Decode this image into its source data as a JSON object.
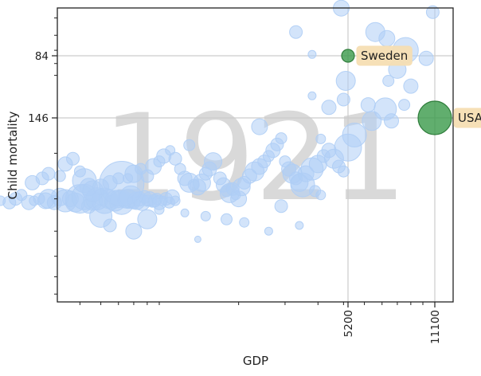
{
  "chart_data": {
    "type": "scatter",
    "xlabel": "GDP",
    "ylabel": "Child mortality",
    "year": "1921",
    "x_scale": "log",
    "y_scale": "log (inverted)",
    "xlim": [
      200,
      14000
    ],
    "ylim": [
      1000,
      30
    ],
    "grid": "reference lines only",
    "x_ticks": [
      {
        "label": "5200",
        "value": 5200
      },
      {
        "label": "11100",
        "value": 11100
      }
    ],
    "y_ticks": [
      {
        "label": "84",
        "value": 84
      },
      {
        "label": "146",
        "value": 146
      }
    ],
    "highlight": [
      {
        "label": "Sweden",
        "gdp": 5200,
        "child_mortality": 84,
        "size": 8,
        "color": "#3a9a4a"
      },
      {
        "label": "USA",
        "gdp": 11100,
        "child_mortality": 146,
        "size": 21,
        "color": "#3a9a4a"
      }
    ],
    "background_color": "#aecdf5",
    "points": [
      [
        228,
        310,
        7
      ],
      [
        250,
        305,
        6
      ],
      [
        270,
        310,
        8
      ],
      [
        285,
        300,
        8
      ],
      [
        300,
        290,
        7
      ],
      [
        320,
        310,
        9
      ],
      [
        335,
        305,
        6
      ],
      [
        350,
        300,
        7
      ],
      [
        370,
        305,
        10
      ],
      [
        380,
        300,
        12
      ],
      [
        400,
        310,
        9
      ],
      [
        420,
        295,
        11
      ],
      [
        440,
        305,
        14
      ],
      [
        460,
        300,
        10
      ],
      [
        480,
        310,
        12
      ],
      [
        500,
        300,
        18
      ],
      [
        520,
        295,
        16
      ],
      [
        540,
        320,
        9
      ],
      [
        560,
        305,
        12
      ],
      [
        580,
        300,
        14
      ],
      [
        600,
        295,
        10
      ],
      [
        620,
        305,
        16
      ],
      [
        640,
        300,
        12
      ],
      [
        660,
        310,
        9
      ],
      [
        680,
        305,
        13
      ],
      [
        700,
        300,
        11
      ],
      [
        720,
        310,
        15
      ],
      [
        740,
        305,
        9
      ],
      [
        760,
        300,
        12
      ],
      [
        780,
        295,
        14
      ],
      [
        800,
        310,
        8
      ],
      [
        820,
        305,
        11
      ],
      [
        840,
        300,
        9
      ],
      [
        860,
        310,
        10
      ],
      [
        880,
        295,
        8
      ],
      [
        900,
        305,
        7
      ],
      [
        920,
        300,
        9
      ],
      [
        940,
        310,
        6
      ],
      [
        960,
        305,
        8
      ],
      [
        980,
        300,
        7
      ],
      [
        1000,
        310,
        9
      ],
      [
        1030,
        305,
        6
      ],
      [
        1060,
        300,
        8
      ],
      [
        1090,
        310,
        7
      ],
      [
        1120,
        295,
        9
      ],
      [
        1150,
        305,
        6
      ],
      [
        330,
        260,
        9
      ],
      [
        360,
        250,
        8
      ],
      [
        380,
        240,
        8
      ],
      [
        420,
        245,
        7
      ],
      [
        440,
        220,
        9
      ],
      [
        470,
        210,
        8
      ],
      [
        500,
        235,
        7
      ],
      [
        520,
        255,
        15
      ],
      [
        540,
        270,
        11
      ],
      [
        560,
        280,
        13
      ],
      [
        600,
        270,
        10
      ],
      [
        650,
        260,
        9
      ],
      [
        700,
        250,
        7
      ],
      [
        720,
        262,
        28
      ],
      [
        760,
        250,
        6
      ],
      [
        800,
        240,
        11
      ],
      [
        850,
        230,
        7
      ],
      [
        900,
        245,
        8
      ],
      [
        950,
        225,
        10
      ],
      [
        1000,
        215,
        7
      ],
      [
        1040,
        205,
        9
      ],
      [
        1100,
        195,
        6
      ],
      [
        1150,
        210,
        8
      ],
      [
        1200,
        230,
        7
      ],
      [
        1250,
        250,
        9
      ],
      [
        1300,
        260,
        12
      ],
      [
        1350,
        265,
        7
      ],
      [
        1400,
        270,
        10
      ],
      [
        1450,
        260,
        11
      ],
      [
        1500,
        240,
        8
      ],
      [
        1550,
        230,
        9
      ],
      [
        1600,
        215,
        11
      ],
      [
        1700,
        250,
        8
      ],
      [
        1750,
        265,
        9
      ],
      [
        1800,
        280,
        7
      ],
      [
        1850,
        285,
        12
      ],
      [
        1900,
        275,
        8
      ],
      [
        1950,
        290,
        6
      ],
      [
        2000,
        300,
        10
      ],
      [
        2050,
        270,
        11
      ],
      [
        2100,
        260,
        8
      ],
      [
        2200,
        245,
        9
      ],
      [
        2300,
        235,
        12
      ],
      [
        2400,
        225,
        10
      ],
      [
        2500,
        215,
        8
      ],
      [
        2600,
        205,
        7
      ],
      [
        2700,
        195,
        9
      ],
      [
        2800,
        185,
        8
      ],
      [
        2900,
        175,
        7
      ],
      [
        3000,
        215,
        7
      ],
      [
        3100,
        230,
        9
      ],
      [
        3200,
        240,
        12
      ],
      [
        3300,
        250,
        8
      ],
      [
        3400,
        260,
        11
      ],
      [
        3500,
        265,
        15
      ],
      [
        3600,
        240,
        10
      ],
      [
        3800,
        230,
        14
      ],
      [
        4000,
        220,
        11
      ],
      [
        4200,
        205,
        8
      ],
      [
        4400,
        195,
        9
      ],
      [
        4600,
        210,
        12
      ],
      [
        4800,
        225,
        8
      ],
      [
        5000,
        235,
        7
      ],
      [
        3900,
        280,
        7
      ],
      [
        4100,
        290,
        6
      ],
      [
        2900,
        320,
        8
      ],
      [
        1400,
        430,
        4
      ],
      [
        2600,
        400,
        5
      ],
      [
        3400,
        380,
        5
      ],
      [
        2100,
        370,
        6
      ],
      [
        1800,
        360,
        7
      ],
      [
        1500,
        350,
        6
      ],
      [
        1250,
        340,
        5
      ],
      [
        1000,
        330,
        6
      ],
      [
        900,
        360,
        12
      ],
      [
        800,
        400,
        10
      ],
      [
        650,
        380,
        8
      ],
      [
        600,
        350,
        14
      ],
      [
        5500,
        170,
        15
      ],
      [
        5200,
        190,
        17
      ],
      [
        6200,
        130,
        9
      ],
      [
        6400,
        150,
        12
      ],
      [
        7200,
        135,
        14
      ],
      [
        7600,
        150,
        9
      ],
      [
        8500,
        130,
        7
      ],
      [
        9000,
        110,
        9
      ],
      [
        8000,
        95,
        11
      ],
      [
        8600,
        80,
        16
      ],
      [
        7300,
        72,
        10
      ],
      [
        6600,
        68,
        12
      ],
      [
        10300,
        86,
        9
      ],
      [
        10900,
        57,
        8
      ],
      [
        7400,
        105,
        7
      ],
      [
        5000,
        124,
        8
      ],
      [
        4400,
        133,
        9
      ],
      [
        4100,
        176,
        6
      ],
      [
        3800,
        120,
        5
      ],
      [
        3300,
        68,
        8
      ],
      [
        3800,
        83,
        5
      ],
      [
        5100,
        105,
        12
      ],
      [
        4900,
        55,
        10
      ],
      [
        1300,
        186,
        7
      ],
      [
        2400,
        158,
        10
      ]
    ]
  }
}
